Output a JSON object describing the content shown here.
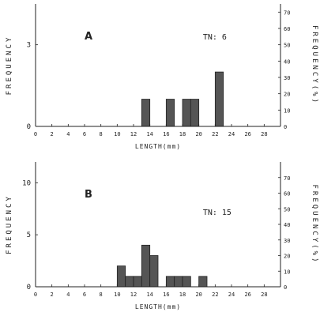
{
  "colors": {
    "bar": "#555555",
    "axis": "#222222",
    "background": "#ffffff"
  },
  "chart_data": [
    {
      "type": "bar",
      "panel_label": "A",
      "annotation": "TN: 6",
      "xlabel": "LENGTH(mm)",
      "ylabel": "FREQUENCY",
      "ylabel_right": "FREQUENCY(%)",
      "xlim": [
        0,
        30
      ],
      "ylim": [
        0,
        4.5
      ],
      "xticks": [
        "0",
        "2",
        "4",
        "6",
        "8",
        "10",
        "12",
        "14",
        "16",
        "18",
        "20",
        "22",
        "24",
        "26",
        "28"
      ],
      "yticks": [
        "0",
        "3"
      ],
      "right_ylim": [
        0,
        75
      ],
      "right_yticks": [
        "0",
        "10",
        "20",
        "30",
        "40",
        "50",
        "60",
        "70"
      ],
      "bin_width": 1,
      "bins": [
        {
          "x": 13,
          "value": 1
        },
        {
          "x": 16,
          "value": 1
        },
        {
          "x": 18,
          "value": 1
        },
        {
          "x": 19,
          "value": 1
        },
        {
          "x": 22,
          "value": 2
        }
      ]
    },
    {
      "type": "bar",
      "panel_label": "B",
      "annotation": "TN: 15",
      "xlabel": "LENGTH(mm)",
      "ylabel": "FREQUENCY",
      "ylabel_right": "FREQUENCY(%)",
      "xlim": [
        0,
        30
      ],
      "ylim": [
        0,
        12
      ],
      "xticks": [
        "0",
        "2",
        "4",
        "6",
        "8",
        "10",
        "12",
        "14",
        "16",
        "18",
        "20",
        "22",
        "24",
        "26",
        "28"
      ],
      "yticks": [
        "0",
        "5",
        "10"
      ],
      "right_ylim": [
        0,
        80
      ],
      "right_yticks": [
        "0",
        "10",
        "20",
        "30",
        "40",
        "50",
        "60",
        "70"
      ],
      "bin_width": 1,
      "bins": [
        {
          "x": 10,
          "value": 2
        },
        {
          "x": 11,
          "value": 1
        },
        {
          "x": 12,
          "value": 1
        },
        {
          "x": 13,
          "value": 4
        },
        {
          "x": 14,
          "value": 3
        },
        {
          "x": 16,
          "value": 1
        },
        {
          "x": 17,
          "value": 1
        },
        {
          "x": 18,
          "value": 1
        },
        {
          "x": 20,
          "value": 1
        }
      ]
    }
  ]
}
